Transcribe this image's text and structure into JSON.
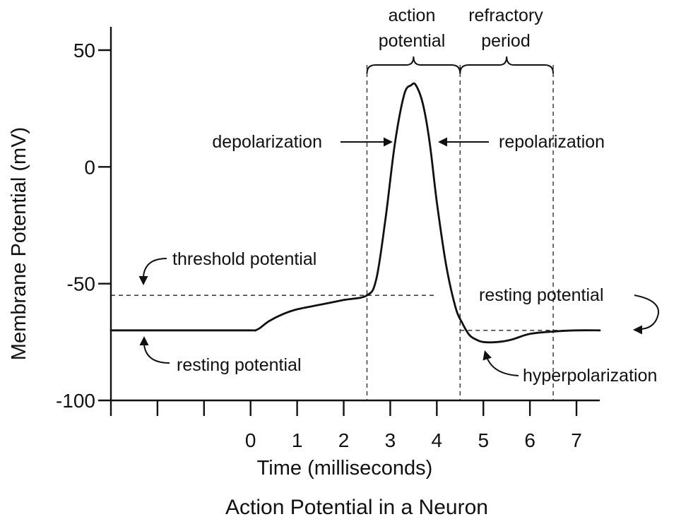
{
  "chart_data": {
    "type": "line",
    "title": "Action Potential in a Neuron",
    "xlabel": "Time (milliseconds)",
    "ylabel": "Membrane Potential (mV)",
    "xlim": [
      -3,
      7.5
    ],
    "ylim": [
      -100,
      50
    ],
    "x_ticks": [
      -3,
      -2,
      -1,
      0,
      1,
      2,
      3,
      4,
      5,
      6,
      7
    ],
    "x_tick_labels": [
      "",
      "",
      "",
      "0",
      "1",
      "2",
      "3",
      "4",
      "5",
      "6",
      "7"
    ],
    "y_ticks": [
      50,
      0,
      -50,
      -100
    ],
    "y_tick_labels": [
      "50",
      "0",
      "-50",
      "-100"
    ],
    "series": [
      {
        "x": [
          -3,
          -2,
          -1,
          0,
          0.1,
          0.2,
          0.4,
          0.7,
          1.0,
          1.5,
          2.0,
          2.5,
          2.7,
          2.9,
          3.1,
          3.3,
          3.45,
          3.55,
          3.7,
          3.85,
          4.0,
          4.2,
          4.4,
          4.55,
          4.7,
          4.85,
          5.0,
          5.3,
          5.6,
          6.0,
          6.5,
          7.0,
          7.5
        ],
        "y": [
          -70,
          -70,
          -70,
          -70,
          -70,
          -69,
          -66,
          -63,
          -61,
          -59,
          -57,
          -55,
          -48,
          -22,
          10,
          31,
          35,
          35,
          27,
          10,
          -15,
          -42,
          -60,
          -67,
          -72,
          -74,
          -75,
          -75,
          -74,
          -71.5,
          -70.5,
          -70,
          -70
        ]
      }
    ],
    "reference_lines": [
      {
        "axis": "y",
        "value": -55,
        "x_from": -3,
        "x_to": 4
      },
      {
        "axis": "y",
        "value": -70,
        "x_from": 4.5,
        "x_to": 7.5
      },
      {
        "axis": "x",
        "value": 2.5
      },
      {
        "axis": "x",
        "value": 4.5
      },
      {
        "axis": "x",
        "value": 6.5
      }
    ],
    "annotations": {
      "action_potential": [
        "action",
        "potential"
      ],
      "refractory_period": [
        "refractory",
        "period"
      ],
      "depolarization": "depolarization",
      "repolarization": "repolarization",
      "threshold_potential": "threshold potential",
      "resting_potential_left": "resting potential",
      "resting_potential_right": "resting potential",
      "hyperpolarization": "hyperpolarization"
    }
  }
}
